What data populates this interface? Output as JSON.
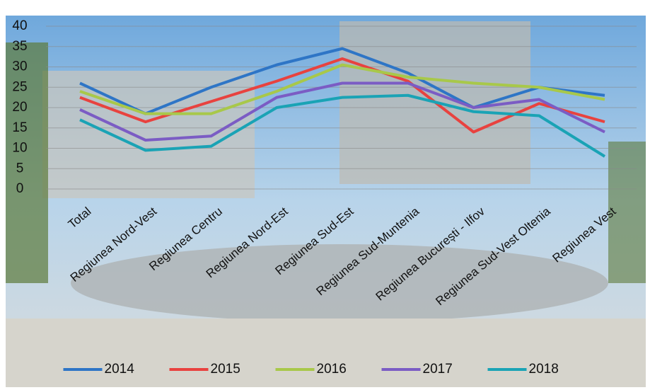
{
  "chart_data": {
    "type": "line",
    "categories": [
      "Total",
      "Regiunea Nord-Vest",
      "Regiunea Centru",
      "Regiunea Nord-Est",
      "Regiunea Sud-Est",
      "Regiunea Sud-Muntenia",
      "Regiunea București - Ilfov",
      "Regiunea Sud-Vest Oltenia",
      "Regiunea Vest"
    ],
    "series": [
      {
        "name": "2014",
        "color": "#2e75c6",
        "values": [
          26,
          18.5,
          25,
          30.5,
          34.5,
          28.5,
          20,
          25,
          23
        ]
      },
      {
        "name": "2015",
        "color": "#e8423f",
        "values": [
          22.5,
          16.5,
          21.5,
          26.5,
          32,
          26.5,
          14,
          21,
          16.5
        ]
      },
      {
        "name": "2016",
        "color": "#a8c84a",
        "values": [
          24,
          18.5,
          18.5,
          24,
          30.5,
          27.5,
          26,
          25,
          22
        ]
      },
      {
        "name": "2017",
        "color": "#7b5cc4",
        "values": [
          19.5,
          12,
          13,
          22.5,
          26,
          26,
          20,
          22,
          14
        ]
      },
      {
        "name": "2018",
        "color": "#1aa3b5",
        "values": [
          17,
          9.5,
          10.5,
          20,
          22.5,
          23,
          19,
          18,
          8
        ]
      }
    ],
    "ylim": [
      0,
      40
    ],
    "yticks": [
      0,
      5,
      10,
      15,
      20,
      25,
      30,
      35,
      40
    ],
    "grid": true,
    "legend": "bottom"
  }
}
